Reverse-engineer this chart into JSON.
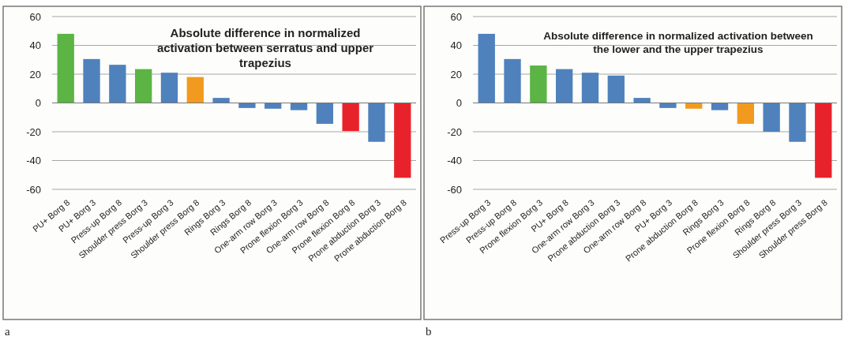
{
  "chart_data": [
    {
      "type": "bar",
      "title": "Absolute difference in normalized activation between serratus and upper trapezius",
      "categories": [
        "PU+ Borg 8",
        "PU+ Borg 3",
        "Press-up Borg 8",
        "Shoulder press Borg 3",
        "Press-up Borg 3",
        "Shoulder press Borg 8",
        "Rings Borg 3",
        "Rings Borg 8",
        "One-arm row Borg 3",
        "Prone flexion Borg 3",
        "One-arm row Borg 8",
        "Prone flexion Borg 8",
        "Prone abduction Borg 3",
        "Prone abduction Borg 8"
      ],
      "values": [
        48,
        30.5,
        26.5,
        23.5,
        21,
        18,
        3.5,
        -3.5,
        -4,
        -5,
        -14.5,
        -19.5,
        -27,
        -52
      ],
      "colors": [
        "#5bb443",
        "#4f81bd",
        "#4f81bd",
        "#5bb443",
        "#4f81bd",
        "#f29a1f",
        "#4f81bd",
        "#4f81bd",
        "#4f81bd",
        "#4f81bd",
        "#4f81bd",
        "#e8222a",
        "#4f81bd",
        "#e8222a"
      ],
      "ylim": [
        -60,
        60
      ],
      "yticks": [
        -60,
        -40,
        -20,
        0,
        20,
        40,
        60
      ],
      "grid": "y",
      "annotations": [
        "a"
      ]
    },
    {
      "type": "bar",
      "title": "Absolute difference in normalized activation between the lower and the upper trapezius",
      "categories": [
        "Press-up Borg 3",
        "Press-up Borg 8",
        "Prone flexion Borg 3",
        "PU+ Borg 8",
        "One-arm row Borg 3",
        "Prone abduction Borg 3",
        "One-arm row Borg 8",
        "PU+ Borg 3",
        "Prone abduction Borg 8",
        "Rings Borg 3",
        "Prone flexion Borg 8",
        "Rings Borg 8",
        "Shoulder press Borg 3",
        "Shoulder press Borg 8"
      ],
      "values": [
        48,
        30.5,
        26,
        23.5,
        21,
        19,
        3.5,
        -3.5,
        -4,
        -5,
        -14.5,
        -20,
        -27,
        -52
      ],
      "colors": [
        "#4f81bd",
        "#4f81bd",
        "#5bb443",
        "#4f81bd",
        "#4f81bd",
        "#4f81bd",
        "#4f81bd",
        "#4f81bd",
        "#f29a1f",
        "#4f81bd",
        "#f29a1f",
        "#4f81bd",
        "#4f81bd",
        "#e8222a"
      ],
      "ylim": [
        -60,
        60
      ],
      "yticks": [
        -60,
        -40,
        -20,
        0,
        20,
        40,
        60
      ],
      "grid": "y",
      "annotations": [
        "b"
      ]
    }
  ]
}
